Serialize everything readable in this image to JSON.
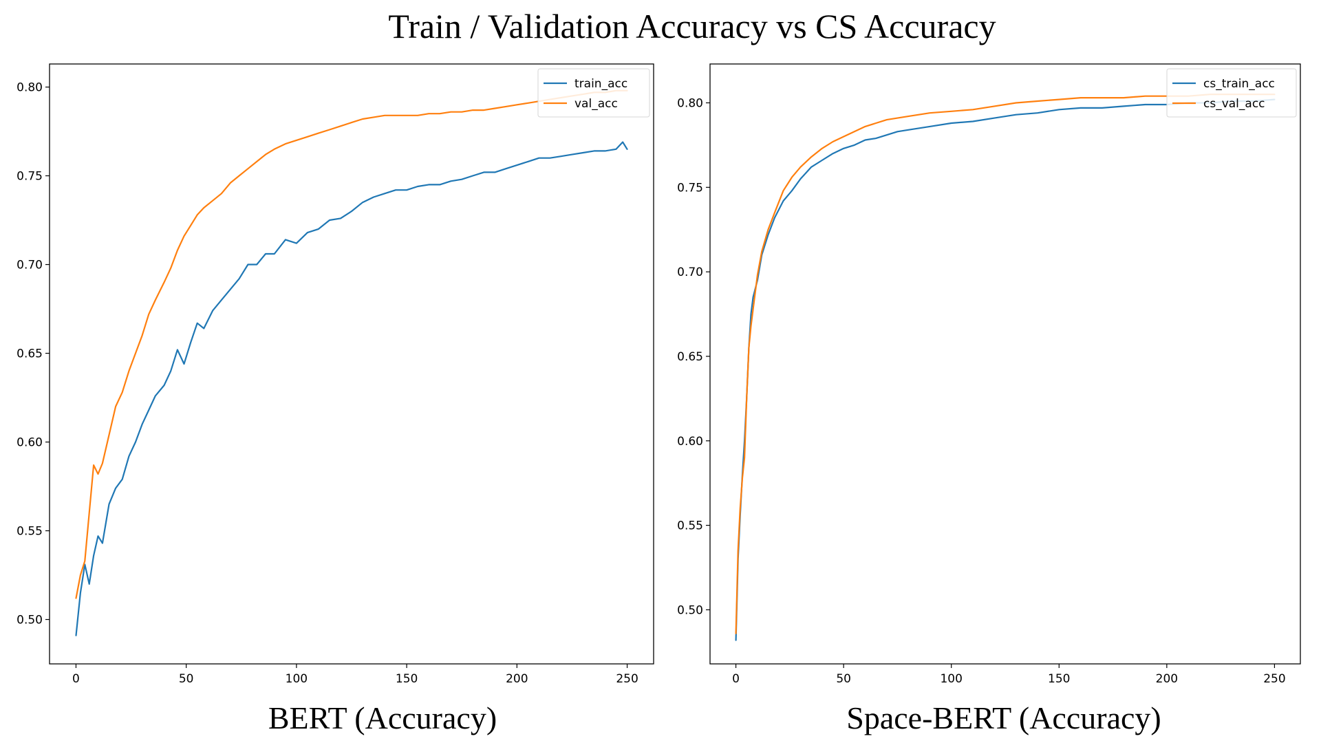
{
  "figure_title": "Train / Validation Accuracy vs CS Accuracy",
  "colors": {
    "blue": "#1f77b4",
    "orange": "#ff7f0e"
  },
  "chart_data": [
    {
      "type": "line",
      "caption": "BERT (Accuracy)",
      "xlim": [
        -12,
        262
      ],
      "ylim": [
        0.475,
        0.813
      ],
      "xticks": [
        0,
        50,
        100,
        150,
        200,
        250
      ],
      "yticks": [
        0.5,
        0.55,
        0.6,
        0.65,
        0.7,
        0.75,
        0.8
      ],
      "ytick_labels": [
        "0.50",
        "0.55",
        "0.60",
        "0.65",
        "0.70",
        "0.75",
        "0.80"
      ],
      "legend_loc": "upper right",
      "series": [
        {
          "name": "train_acc",
          "color": "#1f77b4",
          "points": [
            [
              0,
              0.491
            ],
            [
              2,
              0.515
            ],
            [
              4,
              0.531
            ],
            [
              6,
              0.52
            ],
            [
              8,
              0.536
            ],
            [
              10,
              0.547
            ],
            [
              12,
              0.543
            ],
            [
              15,
              0.565
            ],
            [
              18,
              0.574
            ],
            [
              21,
              0.579
            ],
            [
              24,
              0.592
            ],
            [
              27,
              0.6
            ],
            [
              30,
              0.61
            ],
            [
              33,
              0.618
            ],
            [
              36,
              0.626
            ],
            [
              40,
              0.632
            ],
            [
              43,
              0.64
            ],
            [
              46,
              0.652
            ],
            [
              49,
              0.644
            ],
            [
              52,
              0.656
            ],
            [
              55,
              0.667
            ],
            [
              58,
              0.664
            ],
            [
              62,
              0.674
            ],
            [
              66,
              0.68
            ],
            [
              70,
              0.686
            ],
            [
              74,
              0.692
            ],
            [
              78,
              0.7
            ],
            [
              82,
              0.7
            ],
            [
              86,
              0.706
            ],
            [
              90,
              0.706
            ],
            [
              95,
              0.714
            ],
            [
              100,
              0.712
            ],
            [
              105,
              0.718
            ],
            [
              110,
              0.72
            ],
            [
              115,
              0.725
            ],
            [
              120,
              0.726
            ],
            [
              125,
              0.73
            ],
            [
              130,
              0.735
            ],
            [
              135,
              0.738
            ],
            [
              140,
              0.74
            ],
            [
              145,
              0.742
            ],
            [
              150,
              0.742
            ],
            [
              155,
              0.744
            ],
            [
              160,
              0.745
            ],
            [
              165,
              0.745
            ],
            [
              170,
              0.747
            ],
            [
              175,
              0.748
            ],
            [
              180,
              0.75
            ],
            [
              185,
              0.752
            ],
            [
              190,
              0.752
            ],
            [
              195,
              0.754
            ],
            [
              200,
              0.756
            ],
            [
              205,
              0.758
            ],
            [
              210,
              0.76
            ],
            [
              215,
              0.76
            ],
            [
              220,
              0.761
            ],
            [
              225,
              0.762
            ],
            [
              230,
              0.763
            ],
            [
              235,
              0.764
            ],
            [
              240,
              0.764
            ],
            [
              245,
              0.765
            ],
            [
              248,
              0.769
            ],
            [
              250,
              0.765
            ]
          ]
        },
        {
          "name": "val_acc",
          "color": "#ff7f0e",
          "points": [
            [
              0,
              0.512
            ],
            [
              2,
              0.525
            ],
            [
              4,
              0.533
            ],
            [
              6,
              0.56
            ],
            [
              8,
              0.587
            ],
            [
              10,
              0.582
            ],
            [
              12,
              0.588
            ],
            [
              15,
              0.604
            ],
            [
              18,
              0.62
            ],
            [
              21,
              0.628
            ],
            [
              24,
              0.64
            ],
            [
              27,
              0.65
            ],
            [
              30,
              0.66
            ],
            [
              33,
              0.672
            ],
            [
              36,
              0.68
            ],
            [
              40,
              0.69
            ],
            [
              43,
              0.698
            ],
            [
              46,
              0.708
            ],
            [
              49,
              0.716
            ],
            [
              52,
              0.722
            ],
            [
              55,
              0.728
            ],
            [
              58,
              0.732
            ],
            [
              62,
              0.736
            ],
            [
              66,
              0.74
            ],
            [
              70,
              0.746
            ],
            [
              74,
              0.75
            ],
            [
              78,
              0.754
            ],
            [
              82,
              0.758
            ],
            [
              86,
              0.762
            ],
            [
              90,
              0.765
            ],
            [
              95,
              0.768
            ],
            [
              100,
              0.77
            ],
            [
              105,
              0.772
            ],
            [
              110,
              0.774
            ],
            [
              115,
              0.776
            ],
            [
              120,
              0.778
            ],
            [
              125,
              0.78
            ],
            [
              130,
              0.782
            ],
            [
              135,
              0.783
            ],
            [
              140,
              0.784
            ],
            [
              145,
              0.784
            ],
            [
              150,
              0.784
            ],
            [
              155,
              0.784
            ],
            [
              160,
              0.785
            ],
            [
              165,
              0.785
            ],
            [
              170,
              0.786
            ],
            [
              175,
              0.786
            ],
            [
              180,
              0.787
            ],
            [
              185,
              0.787
            ],
            [
              190,
              0.788
            ],
            [
              195,
              0.789
            ],
            [
              200,
              0.79
            ],
            [
              205,
              0.791
            ],
            [
              210,
              0.792
            ],
            [
              215,
              0.793
            ],
            [
              220,
              0.794
            ],
            [
              225,
              0.795
            ],
            [
              230,
              0.796
            ],
            [
              235,
              0.797
            ],
            [
              240,
              0.797
            ],
            [
              245,
              0.798
            ],
            [
              250,
              0.798
            ]
          ]
        }
      ]
    },
    {
      "type": "line",
      "caption": "Space-BERT (Accuracy)",
      "xlim": [
        -12,
        262
      ],
      "ylim": [
        0.468,
        0.823
      ],
      "xticks": [
        0,
        50,
        100,
        150,
        200,
        250
      ],
      "yticks": [
        0.5,
        0.55,
        0.6,
        0.65,
        0.7,
        0.75,
        0.8
      ],
      "ytick_labels": [
        "0.50",
        "0.55",
        "0.60",
        "0.65",
        "0.70",
        "0.75",
        "0.80"
      ],
      "legend_loc": "upper right",
      "series": [
        {
          "name": "cs_train_acc",
          "color": "#1f77b4",
          "points": [
            [
              0,
              0.482
            ],
            [
              1,
              0.53
            ],
            [
              2,
              0.556
            ],
            [
              3,
              0.58
            ],
            [
              4,
              0.6
            ],
            [
              5,
              0.625
            ],
            [
              6,
              0.655
            ],
            [
              7,
              0.675
            ],
            [
              8,
              0.685
            ],
            [
              10,
              0.695
            ],
            [
              12,
              0.71
            ],
            [
              15,
              0.722
            ],
            [
              18,
              0.732
            ],
            [
              22,
              0.742
            ],
            [
              26,
              0.748
            ],
            [
              30,
              0.755
            ],
            [
              35,
              0.762
            ],
            [
              40,
              0.766
            ],
            [
              45,
              0.77
            ],
            [
              50,
              0.773
            ],
            [
              55,
              0.775
            ],
            [
              60,
              0.778
            ],
            [
              65,
              0.779
            ],
            [
              70,
              0.781
            ],
            [
              75,
              0.783
            ],
            [
              80,
              0.784
            ],
            [
              90,
              0.786
            ],
            [
              100,
              0.788
            ],
            [
              110,
              0.789
            ],
            [
              120,
              0.791
            ],
            [
              130,
              0.793
            ],
            [
              140,
              0.794
            ],
            [
              150,
              0.796
            ],
            [
              160,
              0.797
            ],
            [
              170,
              0.797
            ],
            [
              180,
              0.798
            ],
            [
              190,
              0.799
            ],
            [
              200,
              0.799
            ],
            [
              210,
              0.8
            ],
            [
              220,
              0.8
            ],
            [
              230,
              0.801
            ],
            [
              240,
              0.801
            ],
            [
              250,
              0.802
            ]
          ]
        },
        {
          "name": "cs_val_acc",
          "color": "#ff7f0e",
          "points": [
            [
              0,
              0.486
            ],
            [
              1,
              0.535
            ],
            [
              2,
              0.56
            ],
            [
              3,
              0.578
            ],
            [
              4,
              0.59
            ],
            [
              5,
              0.625
            ],
            [
              6,
              0.655
            ],
            [
              7,
              0.668
            ],
            [
              8,
              0.678
            ],
            [
              10,
              0.698
            ],
            [
              12,
              0.712
            ],
            [
              15,
              0.725
            ],
            [
              18,
              0.735
            ],
            [
              22,
              0.748
            ],
            [
              26,
              0.756
            ],
            [
              30,
              0.762
            ],
            [
              35,
              0.768
            ],
            [
              40,
              0.773
            ],
            [
              45,
              0.777
            ],
            [
              50,
              0.78
            ],
            [
              55,
              0.783
            ],
            [
              60,
              0.786
            ],
            [
              65,
              0.788
            ],
            [
              70,
              0.79
            ],
            [
              75,
              0.791
            ],
            [
              80,
              0.792
            ],
            [
              90,
              0.794
            ],
            [
              100,
              0.795
            ],
            [
              110,
              0.796
            ],
            [
              120,
              0.798
            ],
            [
              130,
              0.8
            ],
            [
              140,
              0.801
            ],
            [
              150,
              0.802
            ],
            [
              160,
              0.803
            ],
            [
              170,
              0.803
            ],
            [
              180,
              0.803
            ],
            [
              190,
              0.804
            ],
            [
              200,
              0.804
            ],
            [
              210,
              0.804
            ],
            [
              220,
              0.805
            ],
            [
              230,
              0.805
            ],
            [
              240,
              0.805
            ],
            [
              250,
              0.805
            ]
          ]
        }
      ]
    }
  ]
}
